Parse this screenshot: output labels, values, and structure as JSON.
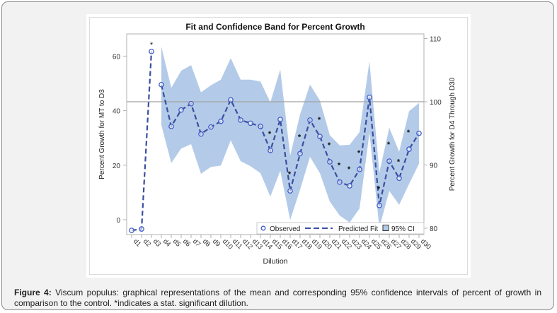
{
  "caption": {
    "label": "Figure 4:",
    "text": " Viscum populus: graphical representations of the mean and corresponding 95% confidence intervals of percent of growth in comparison to the control. *indicates a stat. significant dilution."
  },
  "chart_data": {
    "type": "line",
    "title": "Fit and Confidence Band for Percent Growth",
    "xlabel": "Dilution",
    "ylabel_left": "Percent Growth for MT to D3",
    "ylabel_right": "Percent Growth for D4 Through D30",
    "ylim_left": [
      -5,
      68
    ],
    "ylim_right": [
      79,
      110.6
    ],
    "yticks_left": [
      0,
      20,
      40,
      60
    ],
    "yticks_right": [
      80,
      90,
      100,
      110
    ],
    "reference_line_right": 100,
    "grid": false,
    "categories": [
      "d1",
      "d2",
      "d3",
      "d4",
      "d5",
      "d6",
      "d7",
      "d8",
      "d9",
      "d10",
      "d11",
      "d12",
      "d13",
      "d14",
      "d15",
      "d16",
      "d17",
      "d18",
      "d19",
      "d20",
      "d21",
      "d22",
      "d23",
      "d24",
      "d25",
      "d26",
      "d27",
      "d28",
      "d29",
      "d30"
    ],
    "left_axis_series": {
      "categories": [
        "d1",
        "d2",
        "d3"
      ],
      "observed": [
        -3.9,
        -3.4,
        61.7
      ],
      "significant": [
        false,
        false,
        true
      ]
    },
    "right_axis_series": {
      "categories": [
        "d4",
        "d5",
        "d6",
        "d7",
        "d8",
        "d9",
        "d10",
        "d11",
        "d12",
        "d13",
        "d14",
        "d15",
        "d16",
        "d17",
        "d18",
        "d19",
        "d20",
        "d21",
        "d22",
        "d23",
        "d24",
        "d25",
        "d26",
        "d27",
        "d28",
        "d29",
        "d30"
      ],
      "observed": [
        102.7,
        96.1,
        98.7,
        99.7,
        94.9,
        96.0,
        96.9,
        100.3,
        97.1,
        96.6,
        96.1,
        92.3,
        97.2,
        85.9,
        91.8,
        97.1,
        94.5,
        90.5,
        87.3,
        86.7,
        89.3,
        100.7,
        83.6,
        90.6,
        87.9,
        92.5,
        95.0
      ],
      "ci_upper": [
        108.7,
        102.2,
        104.9,
        105.8,
        101.5,
        102.6,
        103.5,
        106.9,
        103.5,
        103.5,
        103.2,
        99.9,
        105.1,
        91.5,
        98.0,
        102.7,
        100.2,
        94.7,
        93.1,
        93.2,
        95.2,
        106.4,
        88.8,
        95.9,
        92.1,
        98.5,
        99.8
      ],
      "ci_lower": [
        96.3,
        90.3,
        92.6,
        93.3,
        88.6,
        89.7,
        89.9,
        93.9,
        90.6,
        89.8,
        88.7,
        85.0,
        89.1,
        81.3,
        86.1,
        91.3,
        88.7,
        84.2,
        82.0,
        80.9,
        83.1,
        95.1,
        80.1,
        85.9,
        83.7,
        87.0,
        90.2
      ],
      "significant": [
        false,
        false,
        false,
        false,
        false,
        false,
        false,
        false,
        false,
        false,
        false,
        true,
        false,
        true,
        true,
        false,
        true,
        true,
        true,
        true,
        true,
        false,
        true,
        true,
        true,
        true,
        false
      ]
    },
    "legend": {
      "position": "bottom-right-inside",
      "entries": [
        {
          "name": "Observed",
          "symbol": "circle"
        },
        {
          "name": "Predicted Fit",
          "symbol": "dashed-line"
        },
        {
          "name": "95% CI",
          "symbol": "filled-square"
        }
      ]
    },
    "significance_marker": "*",
    "colors": {
      "line": "#3a4fa0",
      "marker": "#3f5cc8",
      "band": "#b3cbe8",
      "reference": "#a0a0a0",
      "frame": "#b0b0b0"
    }
  }
}
